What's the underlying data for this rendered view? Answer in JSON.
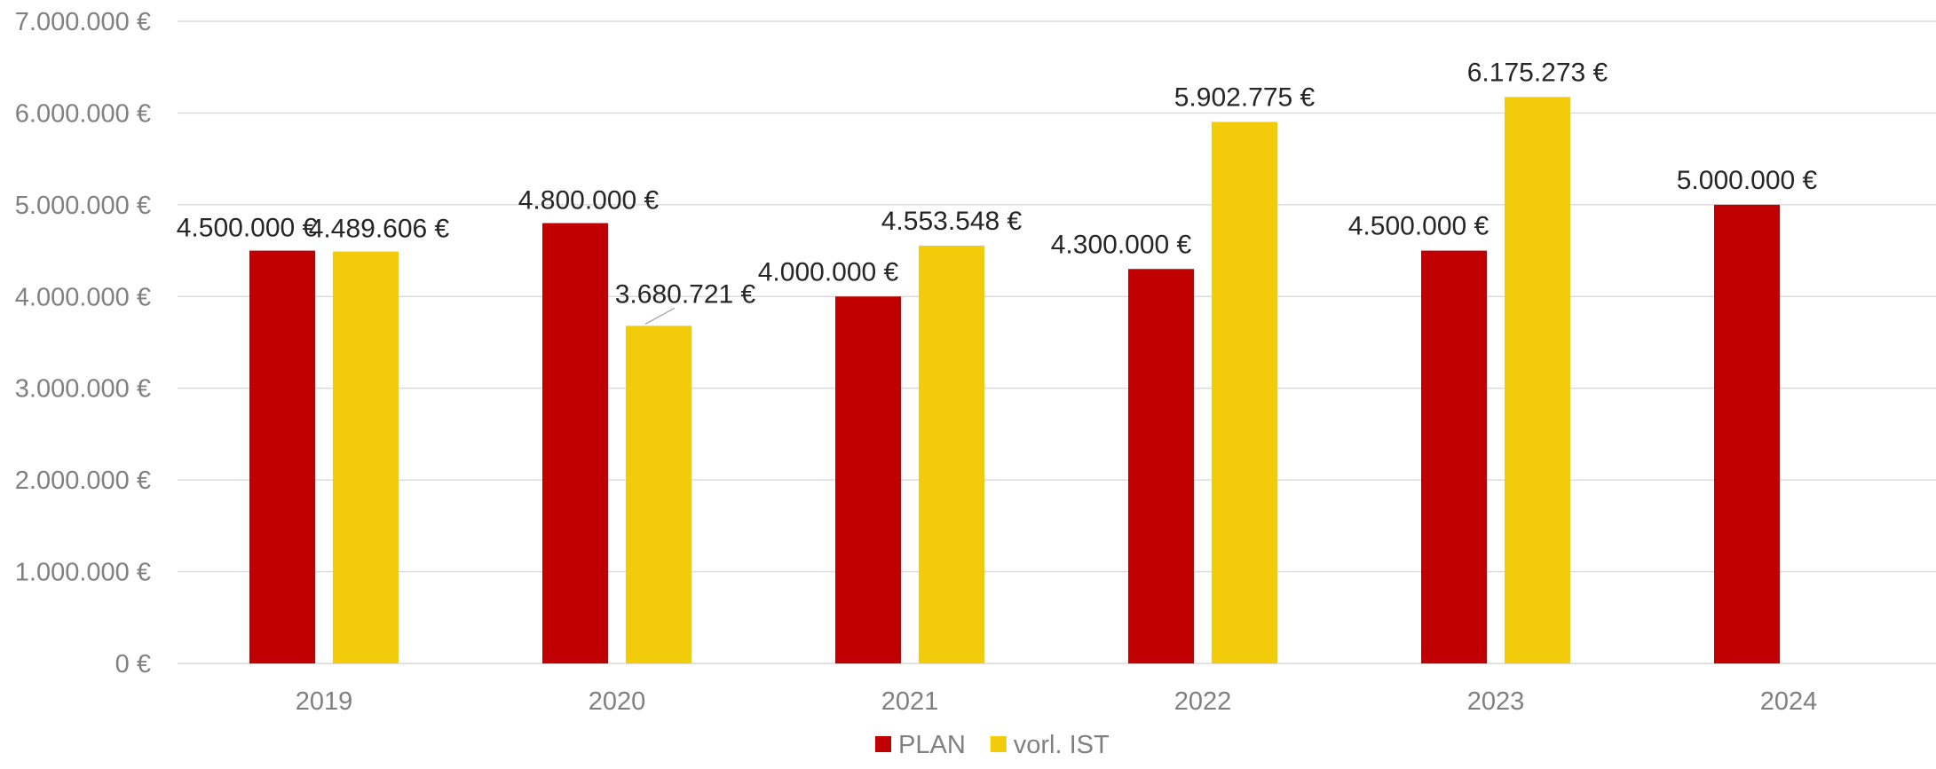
{
  "chart_data": {
    "type": "bar",
    "title": "",
    "xlabel": "",
    "ylabel": "",
    "categories": [
      "2019",
      "2020",
      "2021",
      "2022",
      "2023",
      "2024"
    ],
    "series": [
      {
        "name": "PLAN",
        "color": "#c00000",
        "values": [
          4500000,
          4800000,
          4000000,
          4300000,
          4500000,
          5000000
        ],
        "labels": [
          "4.500.000 €",
          "4.800.000 €",
          "4.000.000 €",
          "4.300.000 €",
          "4.500.000 €",
          "5.000.000 €"
        ]
      },
      {
        "name": "vorl. IST",
        "color": "#f2cb0a",
        "values": [
          4489606,
          3680721,
          4553548,
          5902775,
          6175273,
          null
        ],
        "labels": [
          "4.489.606 €",
          "3.680.721 €",
          "4.553.548 €",
          "5.902.775 €",
          "6.175.273 €",
          ""
        ]
      }
    ],
    "ylim": [
      0,
      7000000
    ],
    "yticks": [
      0,
      1000000,
      2000000,
      3000000,
      4000000,
      5000000,
      6000000,
      7000000
    ],
    "ytick_labels": [
      "0 €",
      "1.000.000 €",
      "2.000.000 €",
      "3.000.000 €",
      "4.000.000 €",
      "5.000.000 €",
      "6.000.000 €",
      "7.000.000 €"
    ],
    "grid": true,
    "legend_position": "bottom-center"
  }
}
